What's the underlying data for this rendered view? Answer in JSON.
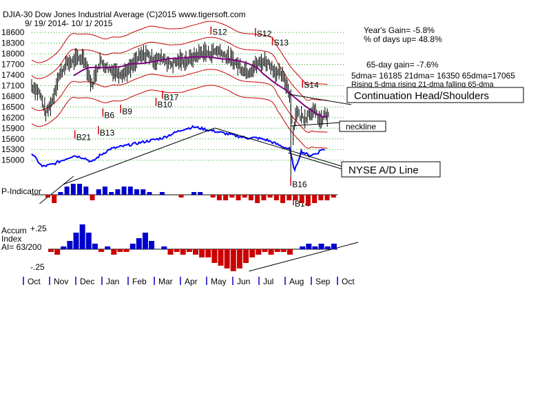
{
  "header": {
    "title": "DJIA-30  Dow Jones Industrial Average   (C)2015 www.tigersoft.com",
    "date_range": "9/ 19/ 2014-  10/ 1/ 2015"
  },
  "stats": {
    "years_gain": "Year's Gain= -5.8%",
    "pct_days_up": "% of days up= 48.8%",
    "gain_65": "65-day gain= -7.6%",
    "dma_values": "5dma= 16185 21dma= 16350 65dma=17065",
    "dma_trend": "Rising 5-dma  rising 21-dma  falling 65-dma"
  },
  "annotations": {
    "head_shoulders": "Continuation Head/Shoulders",
    "neckline": "neckline",
    "nyse_ad": "NYSE A/D Line"
  },
  "panels": {
    "p_indicator": "P-Indicator",
    "accum_1": "Accum",
    "accum_2": "Index",
    "accum_3": "AI= 63/200",
    "accum_top": "+.25",
    "accum_bottom": "-.25"
  },
  "colors": {
    "price_bars": "#000000",
    "band": "#cc0000",
    "dma_purple": "#800080",
    "ad_line": "#0000ff",
    "positive": "#0000cc",
    "negative": "#cc0000",
    "signal_buy": "#cc0000",
    "signal_sell": "#cc0000",
    "grid": "#00aa00"
  },
  "chart_data": {
    "type": "line",
    "title": "DJIA-30  Dow Jones Industrial Average",
    "x_months": [
      "Oct",
      "Nov",
      "Dec",
      "Jan",
      "Feb",
      "Mar",
      "Apr",
      "May",
      "Jun",
      "Jul",
      "Aug",
      "Sep",
      "Oct"
    ],
    "y_ticks": [
      18600,
      18300,
      18000,
      17700,
      17400,
      17100,
      16800,
      16500,
      16200,
      15900,
      15600,
      15300,
      15000
    ],
    "ylim": [
      14800,
      18700
    ],
    "price_series": {
      "name": "DJIA",
      "x": [
        0,
        0.3,
        0.55,
        0.8,
        1.0,
        1.3,
        1.6,
        1.75,
        2.0,
        2.3,
        2.6,
        2.9,
        3.2,
        3.5,
        3.8,
        4.1,
        4.4,
        4.7,
        5.0,
        5.3,
        5.6,
        5.9,
        6.2,
        6.5,
        6.8,
        7.1,
        7.4,
        7.7,
        8.0,
        8.3,
        8.6,
        8.9,
        9.1,
        9.35,
        9.55,
        9.7,
        9.85,
        10.0,
        10.1,
        10.25,
        10.45,
        10.7,
        10.9,
        11.05,
        11.2,
        11.35
      ],
      "values": [
        17100,
        16900,
        16300,
        16700,
        17300,
        17700,
        17800,
        17850,
        17900,
        17100,
        17800,
        17600,
        17500,
        17450,
        17600,
        17900,
        18000,
        17800,
        17900,
        17700,
        17800,
        17800,
        17900,
        18050,
        18000,
        18100,
        17950,
        17800,
        17600,
        17500,
        17700,
        17800,
        17700,
        17450,
        17400,
        17200,
        16900,
        15700,
        16400,
        16250,
        16200,
        16400,
        16300,
        16050,
        16300,
        16200
      ]
    },
    "ad_series": {
      "name": "NYSE A/D Line",
      "x": [
        0,
        0.4,
        0.8,
        1.2,
        1.6,
        2.0,
        2.3,
        2.6,
        3.0,
        3.4,
        3.8,
        4.2,
        4.6,
        5.0,
        5.4,
        5.8,
        6.2,
        6.6,
        7.0,
        7.4,
        7.8,
        8.2,
        8.6,
        9.0,
        9.4,
        9.6,
        9.85,
        10.05,
        10.3,
        10.6,
        10.9,
        11.1,
        11.25
      ],
      "values": [
        14.6,
        14.0,
        14.1,
        14.3,
        14.5,
        14.4,
        14.2,
        14.5,
        14.8,
        14.9,
        15.0,
        15.1,
        15.2,
        15.3,
        15.5,
        15.7,
        15.8,
        15.7,
        15.6,
        15.5,
        15.4,
        15.3,
        15.3,
        15.2,
        15.0,
        14.9,
        14.8,
        13.8,
        14.7,
        14.5,
        14.6,
        14.8,
        14.7
      ]
    },
    "signals": [
      {
        "label": "S12",
        "x": 6.85,
        "value": 18500,
        "kind": "sell"
      },
      {
        "label": "S12",
        "x": 8.55,
        "value": 18450,
        "kind": "sell"
      },
      {
        "label": "S13",
        "x": 9.2,
        "value": 18200,
        "kind": "sell"
      },
      {
        "label": "S14",
        "x": 10.35,
        "value": 17000,
        "kind": "sell"
      },
      {
        "label": "B21",
        "x": 1.65,
        "value": 15880,
        "kind": "buy"
      },
      {
        "label": "B13",
        "x": 2.55,
        "value": 16000,
        "kind": "buy"
      },
      {
        "label": "B6",
        "x": 2.72,
        "value": 16500,
        "kind": "buy"
      },
      {
        "label": "B9",
        "x": 3.4,
        "value": 16600,
        "kind": "buy"
      },
      {
        "label": "B10",
        "x": 4.75,
        "value": 16800,
        "kind": "buy"
      },
      {
        "label": "B17",
        "x": 5.0,
        "value": 17000,
        "kind": "buy"
      },
      {
        "label": "B16",
        "x": 9.9,
        "value": 14550,
        "kind": "buy"
      },
      {
        "label": "B14",
        "x": 10.0,
        "value": 14000,
        "kind": "buy"
      }
    ],
    "p_indicator": [
      -1,
      -3,
      1,
      3,
      4,
      4,
      3,
      -2,
      2,
      3,
      1,
      2,
      3,
      3,
      2,
      2,
      1,
      0,
      1,
      0,
      0,
      -1,
      0,
      1,
      1,
      0,
      -1,
      -2,
      -2,
      -1,
      -2,
      -1,
      -2,
      -3,
      -2,
      -1,
      -2,
      -3,
      -2,
      -2,
      -3,
      -4,
      -3,
      -2,
      -2,
      -1
    ],
    "accum_index": [
      -1,
      -2,
      1,
      3,
      6,
      9,
      6,
      2,
      -1,
      1,
      -2,
      -1,
      -1,
      2,
      4,
      6,
      3,
      0,
      1,
      -2,
      -1,
      -2,
      -1,
      -2,
      -3,
      -3,
      -5,
      -6,
      -7,
      -8,
      -7,
      -5,
      -3,
      -2,
      -1,
      -2,
      -1,
      -1,
      -2,
      0,
      1,
      2,
      1,
      2,
      1,
      2
    ]
  }
}
